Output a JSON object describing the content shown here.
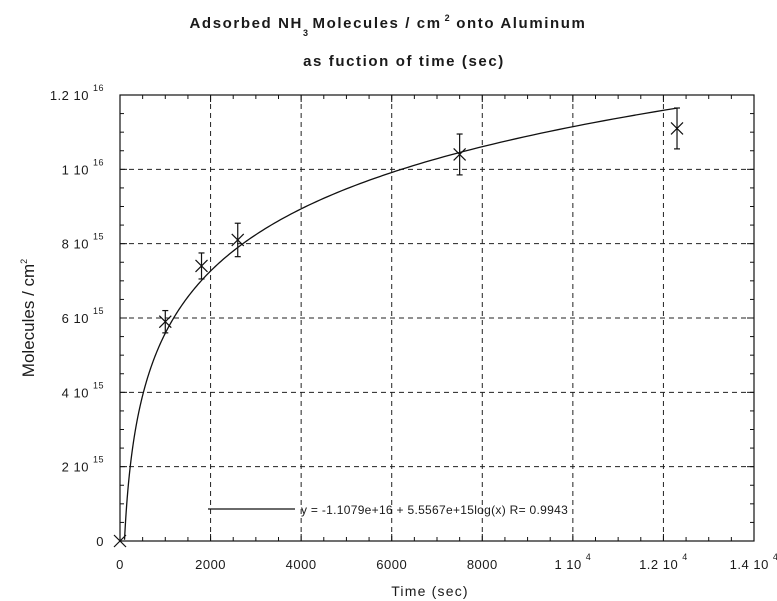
{
  "chart_data": {
    "type": "scatter",
    "title_parts": [
      "Adsorbed NH",
      "3",
      "Molecules / cm",
      "2",
      "onto Aluminum"
    ],
    "title_line2": "as fuction of time (sec)",
    "xlabel": "Time (sec)",
    "ylabel_parts": [
      "Molecules / cm",
      "2"
    ],
    "xlim": [
      0,
      14000
    ],
    "ylim": [
      0,
      12000000000000000
    ],
    "x_ticks": [
      {
        "value": 0,
        "mant": "0",
        "exp": ""
      },
      {
        "value": 2000,
        "mant": "2000",
        "exp": ""
      },
      {
        "value": 4000,
        "mant": "4000",
        "exp": ""
      },
      {
        "value": 6000,
        "mant": "6000",
        "exp": ""
      },
      {
        "value": 8000,
        "mant": "8000",
        "exp": ""
      },
      {
        "value": 10000,
        "mant": "1 10",
        "exp": "4"
      },
      {
        "value": 12000,
        "mant": "1.2 10",
        "exp": "4"
      },
      {
        "value": 14000,
        "mant": "1.4 10",
        "exp": "4"
      }
    ],
    "y_ticks": [
      {
        "value": 0,
        "mant": "0",
        "exp": ""
      },
      {
        "value": 2000000000000000,
        "mant": "2 10",
        "exp": "15"
      },
      {
        "value": 4000000000000000,
        "mant": "4 10",
        "exp": "15"
      },
      {
        "value": 6000000000000000,
        "mant": "6 10",
        "exp": "15"
      },
      {
        "value": 8000000000000000,
        "mant": "8 10",
        "exp": "15"
      },
      {
        "value": 10000000000000000,
        "mant": "1 10",
        "exp": "16"
      },
      {
        "value": 12000000000000000,
        "mant": "1.2 10",
        "exp": "16"
      }
    ],
    "grid": true,
    "series": [
      {
        "marker": "x",
        "x": [
          0,
          1000,
          1800,
          2600,
          7500,
          12300
        ],
        "y": [
          0,
          5900000000000000,
          7400000000000000,
          8100000000000000,
          10400000000000000,
          11100000000000000
        ],
        "yerr": [
          0,
          300000000000000,
          350000000000000,
          450000000000000,
          550000000000000,
          550000000000000
        ]
      }
    ],
    "fit": {
      "equation": "y = -1.1079e+16 + 5.5567e+15log(x)   R= 0.9943",
      "intercept": -11079000000000000,
      "slope": 5556700000000000,
      "x_range": [
        100,
        12300
      ]
    }
  }
}
